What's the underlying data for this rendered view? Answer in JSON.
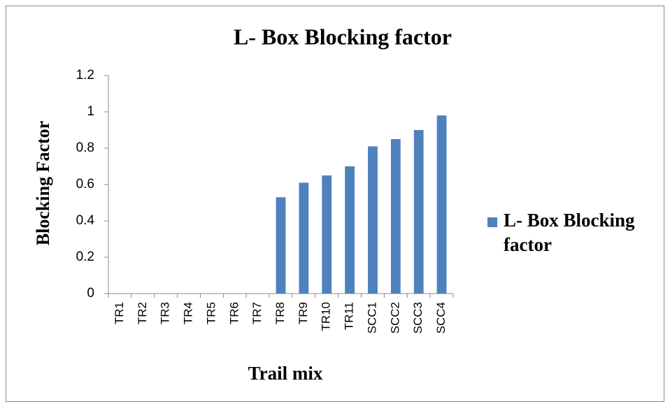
{
  "chart_data": {
    "type": "bar",
    "title": "L- Box Blocking factor",
    "x_label": "Trail mix",
    "y_label": "Blocking Factor",
    "categories": [
      "TR1",
      "TR2",
      "TR3",
      "TR4",
      "TR5",
      "TR6",
      "TR7",
      "TR8",
      "TR9",
      "TR10",
      "TR11",
      "SCC1",
      "SCC2",
      "SCC3",
      "SCC4"
    ],
    "series": [
      {
        "name": "L- Box Blocking factor",
        "color": "#4f81bd",
        "values": [
          0,
          0,
          0,
          0,
          0,
          0,
          0,
          0.53,
          0.61,
          0.65,
          0.7,
          0.81,
          0.85,
          0.9,
          0.98
        ]
      }
    ],
    "ylim": [
      0,
      1.2
    ],
    "yticks": [
      0,
      0.2,
      0.4,
      0.6,
      0.8,
      1,
      1.2
    ],
    "grid": false,
    "legend": "right"
  }
}
